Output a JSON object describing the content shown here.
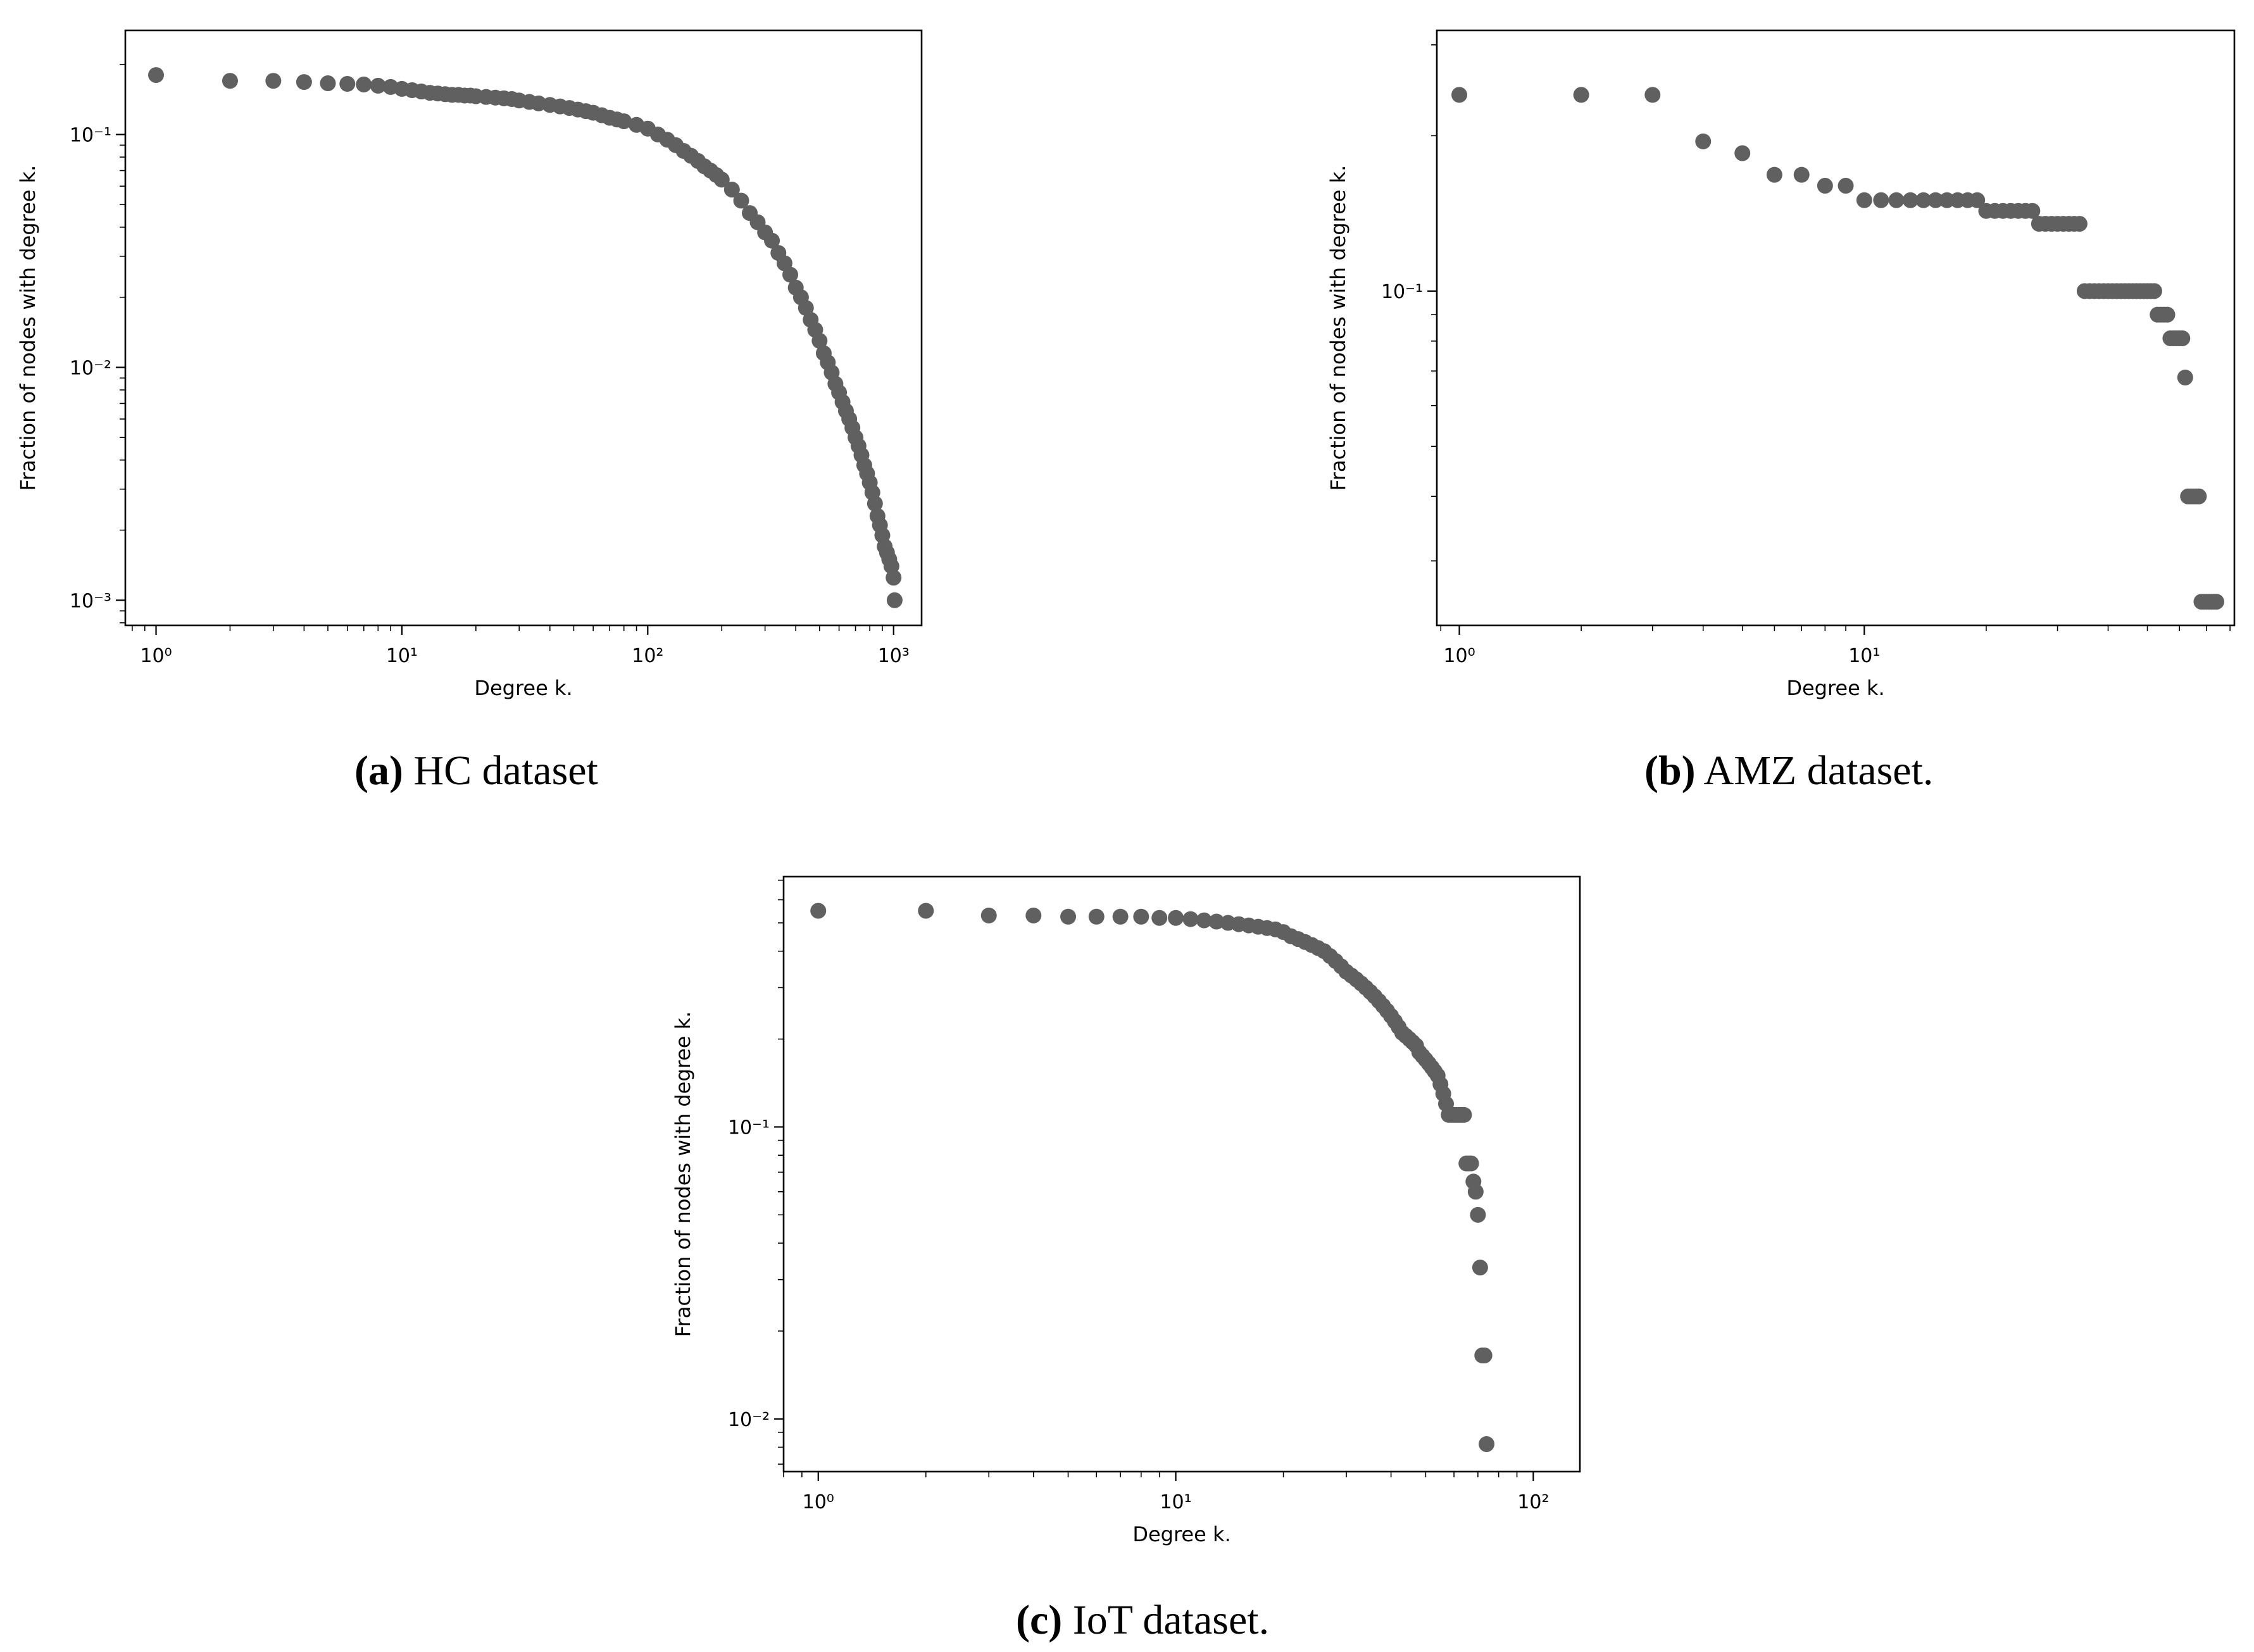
{
  "marker_color": "#606060",
  "chart_data": [
    {
      "type": "scatter",
      "caption_letter": "(a)",
      "caption_text": "HC dataset",
      "xlabel": "Degree k.",
      "ylabel": "Fraction of nodes with degree k.",
      "xscale": "log",
      "yscale": "log",
      "xlim": [
        0.75,
        1300
      ],
      "ylim": [
        0.00078,
        0.28
      ],
      "xticks": [
        {
          "value": 1,
          "label": "10⁰"
        },
        {
          "value": 10,
          "label": "10¹"
        },
        {
          "value": 100,
          "label": "10²"
        },
        {
          "value": 1000,
          "label": "10³"
        }
      ],
      "yticks": [
        {
          "value": 0.001,
          "label": "10⁻³"
        },
        {
          "value": 0.01,
          "label": "10⁻²"
        },
        {
          "value": 0.1,
          "label": "10⁻¹"
        }
      ],
      "grid": false,
      "x": [
        1,
        2,
        3,
        4,
        5,
        6,
        7,
        8,
        9,
        10,
        11,
        12,
        13,
        14,
        15,
        16,
        17,
        18,
        19,
        20,
        22,
        24,
        26,
        28,
        30,
        33,
        36,
        40,
        44,
        48,
        52,
        56,
        60,
        65,
        70,
        75,
        80,
        90,
        100,
        110,
        120,
        130,
        140,
        150,
        160,
        170,
        180,
        190,
        200,
        220,
        240,
        260,
        280,
        300,
        320,
        340,
        360,
        380,
        400,
        420,
        440,
        460,
        480,
        500,
        520,
        540,
        560,
        580,
        600,
        620,
        640,
        660,
        680,
        700,
        720,
        740,
        760,
        780,
        800,
        820,
        840,
        860,
        880,
        900,
        920,
        940,
        960,
        980,
        1000,
        1010
      ],
      "y": [
        0.18,
        0.17,
        0.17,
        0.168,
        0.166,
        0.165,
        0.164,
        0.162,
        0.16,
        0.157,
        0.155,
        0.153,
        0.151,
        0.15,
        0.149,
        0.148,
        0.148,
        0.147,
        0.147,
        0.146,
        0.145,
        0.144,
        0.143,
        0.142,
        0.14,
        0.138,
        0.136,
        0.134,
        0.132,
        0.13,
        0.128,
        0.126,
        0.124,
        0.121,
        0.118,
        0.116,
        0.114,
        0.11,
        0.106,
        0.1,
        0.095,
        0.09,
        0.085,
        0.081,
        0.077,
        0.073,
        0.07,
        0.067,
        0.064,
        0.058,
        0.052,
        0.046,
        0.042,
        0.038,
        0.035,
        0.031,
        0.028,
        0.025,
        0.022,
        0.02,
        0.018,
        0.016,
        0.0145,
        0.013,
        0.0115,
        0.0105,
        0.0095,
        0.0085,
        0.0078,
        0.0071,
        0.0065,
        0.006,
        0.0055,
        0.005,
        0.0046,
        0.0042,
        0.0038,
        0.0035,
        0.0032,
        0.0029,
        0.0026,
        0.0023,
        0.0021,
        0.0019,
        0.0017,
        0.0016,
        0.0015,
        0.0014,
        0.00125,
        0.001
      ]
    },
    {
      "type": "scatter",
      "caption_letter": "(b)",
      "caption_text": "AMZ dataset.",
      "xlabel": "Degree k.",
      "ylabel": "Fraction of nodes with degree k.",
      "xscale": "log",
      "yscale": "log",
      "xlim": [
        0.88,
        82
      ],
      "ylim": [
        0.0225,
        0.32
      ],
      "xticks": [
        {
          "value": 1,
          "label": "10⁰"
        },
        {
          "value": 10,
          "label": "10¹"
        }
      ],
      "yticks": [
        {
          "value": 0.1,
          "label": "10⁻¹"
        }
      ],
      "grid": false,
      "x": [
        1,
        2,
        3,
        4,
        5,
        6,
        7,
        8,
        9,
        10,
        11,
        12,
        13,
        14,
        15,
        16,
        17,
        18,
        19,
        20,
        21,
        22,
        23,
        24,
        25,
        26,
        27,
        28,
        29,
        30,
        31,
        32,
        33,
        34,
        35,
        36,
        37,
        38,
        39,
        40,
        41,
        42,
        43,
        44,
        45,
        46,
        47,
        48,
        49,
        50,
        51,
        52,
        53,
        54,
        55,
        56,
        57,
        58,
        59,
        60,
        61,
        62,
        63,
        64,
        65,
        66,
        67,
        68,
        69,
        70,
        71,
        72,
        73,
        74
      ],
      "y": [
        0.24,
        0.24,
        0.24,
        0.195,
        0.185,
        0.168,
        0.168,
        0.16,
        0.16,
        0.15,
        0.15,
        0.15,
        0.15,
        0.15,
        0.15,
        0.15,
        0.15,
        0.15,
        0.15,
        0.143,
        0.143,
        0.143,
        0.143,
        0.143,
        0.143,
        0.143,
        0.135,
        0.135,
        0.135,
        0.135,
        0.135,
        0.135,
        0.135,
        0.135,
        0.1,
        0.1,
        0.1,
        0.1,
        0.1,
        0.1,
        0.1,
        0.1,
        0.1,
        0.1,
        0.1,
        0.1,
        0.1,
        0.1,
        0.1,
        0.1,
        0.1,
        0.1,
        0.09,
        0.09,
        0.09,
        0.09,
        0.081,
        0.081,
        0.081,
        0.081,
        0.081,
        0.068,
        0.04,
        0.04,
        0.04,
        0.04,
        0.04,
        0.025,
        0.025,
        0.025,
        0.025,
        0.025,
        0.025,
        0.025
      ]
    },
    {
      "type": "scatter",
      "caption_letter": "(c)",
      "caption_text": "IoT dataset.",
      "xlabel": "Degree k.",
      "ylabel": "Fraction of nodes with degree k.",
      "xscale": "log",
      "yscale": "log",
      "xlim": [
        0.8,
        135
      ],
      "ylim": [
        0.0066,
        0.72
      ],
      "xticks": [
        {
          "value": 1,
          "label": "10⁰"
        },
        {
          "value": 10,
          "label": "10¹"
        },
        {
          "value": 100,
          "label": "10²"
        }
      ],
      "yticks": [
        {
          "value": 0.01,
          "label": "10⁻²"
        },
        {
          "value": 0.1,
          "label": "10⁻¹"
        }
      ],
      "grid": false,
      "x": [
        1,
        2,
        3,
        4,
        5,
        6,
        7,
        8,
        9,
        10,
        11,
        12,
        13,
        14,
        15,
        16,
        17,
        18,
        19,
        20,
        21,
        22,
        23,
        24,
        25,
        26,
        27,
        28,
        29,
        30,
        31,
        32,
        33,
        34,
        35,
        36,
        37,
        38,
        39,
        40,
        41,
        42,
        43,
        44,
        45,
        46,
        47,
        48,
        49,
        50,
        51,
        52,
        53,
        54,
        55,
        56,
        57,
        58,
        59,
        60,
        61,
        62,
        63,
        64,
        65,
        66,
        67,
        68,
        69,
        70,
        71,
        72,
        73,
        74
      ],
      "y": [
        0.55,
        0.55,
        0.53,
        0.53,
        0.525,
        0.525,
        0.525,
        0.525,
        0.52,
        0.52,
        0.515,
        0.51,
        0.505,
        0.5,
        0.495,
        0.49,
        0.485,
        0.48,
        0.475,
        0.465,
        0.45,
        0.44,
        0.43,
        0.42,
        0.41,
        0.4,
        0.385,
        0.37,
        0.355,
        0.34,
        0.33,
        0.32,
        0.31,
        0.3,
        0.29,
        0.28,
        0.27,
        0.26,
        0.25,
        0.24,
        0.23,
        0.22,
        0.21,
        0.205,
        0.2,
        0.195,
        0.19,
        0.18,
        0.175,
        0.17,
        0.165,
        0.16,
        0.155,
        0.15,
        0.14,
        0.13,
        0.12,
        0.11,
        0.11,
        0.11,
        0.11,
        0.11,
        0.11,
        0.11,
        0.075,
        0.075,
        0.075,
        0.065,
        0.06,
        0.05,
        0.033,
        0.0165,
        0.0165,
        0.0082
      ]
    }
  ]
}
